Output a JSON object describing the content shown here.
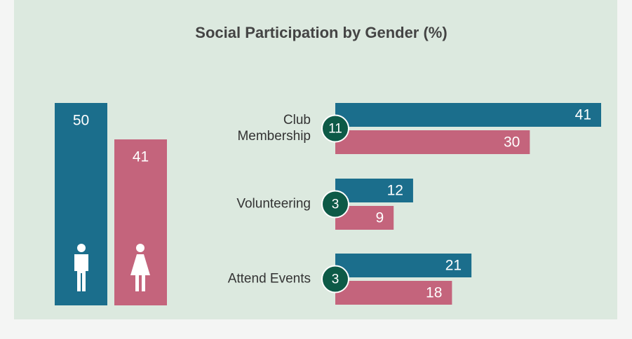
{
  "chart_data": {
    "type": "bar",
    "title": "Social Participation by Gender (%)",
    "overall_values": [
      50,
      41
    ],
    "categories": [
      "Club Membership",
      "Volunteering",
      "Attend Events"
    ],
    "series": [
      {
        "color": "#1b6e8c",
        "values": [
          41,
          12,
          21
        ]
      },
      {
        "color": "#c4647c",
        "values": [
          30,
          9,
          18
        ]
      }
    ],
    "differences": [
      11,
      3,
      3
    ],
    "difference_color": "#0d5a47"
  }
}
